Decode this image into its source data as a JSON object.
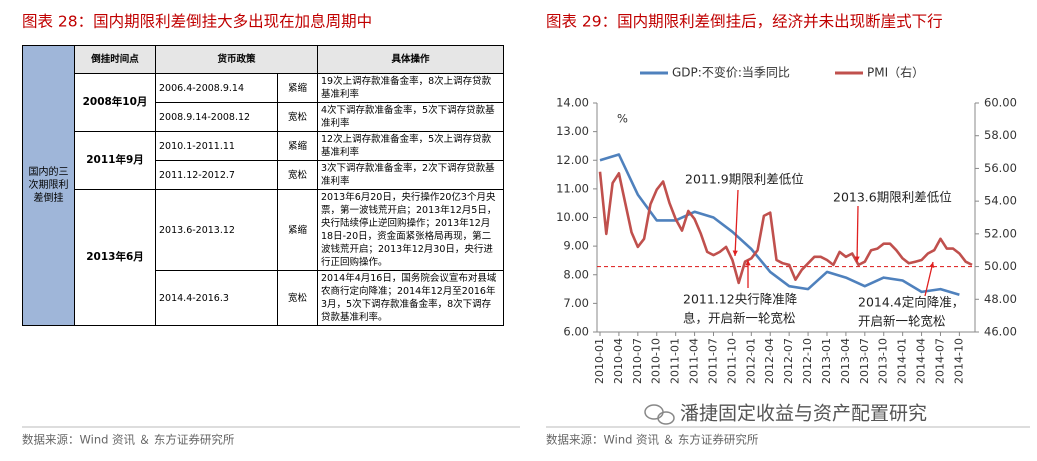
{
  "left_panel": {
    "title": "图表 28：国内期限利差倒挂大多出现在加息周期中",
    "table": {
      "side_label": "国内的三次期限利差倒挂",
      "header": [
        "倒挂时间点",
        "货币政策",
        "具体操作"
      ],
      "groups": [
        {
          "time": "2008年10月",
          "rows": [
            [
              "2006.4-2008.9.14",
              "紧缩",
              "19次上调存款准备金率，8次上调存贷款基准利率"
            ],
            [
              "2008.9.14-2008.12",
              "宽松",
              "4次下调存款准备金率，5次下调存贷款基准利率"
            ]
          ]
        },
        {
          "time": "2011年9月",
          "rows": [
            [
              "2010.1-2011.11",
              "紧缩",
              "12次上调存款准备金率，5次上调存贷款基准利率"
            ],
            [
              "2011.12-2012.7",
              "宽松",
              "3次下调存款准备金率，2次下调存贷款基准利率"
            ]
          ]
        },
        {
          "time": "2013年6月",
          "rows": [
            [
              "2013.6-2013.12",
              "紧缩",
              "2013年6月20日，央行操作20亿3个月央票，第一波钱荒开启；2013年12月5日，央行陆续停止逆回购操作；2013年12月18日-20日，资金面紧张格局再现，第二波钱荒开启；2013年12月30日，央行进行正回购操作。"
            ],
            [
              "2014.4-2016.3",
              "宽松",
              "2014年4月16日，国务院会议宣布对县域农商行定向降准；2014年12月至2016年3月，5次下调存款准备金率，8次下调存贷款基准利率。"
            ]
          ]
        }
      ]
    },
    "source": "数据来源：Wind 资讯 ＆ 东方证券研究所"
  },
  "right_panel": {
    "title": "图表 29：国内期限利差倒挂后，经济并未出现断崖式下行",
    "source": "数据来源：Wind 资讯 ＆ 东方证券研究所",
    "watermark": "潘捷固定收益与资产配置研究"
  },
  "chart_data": {
    "type": "line",
    "y_unit_label": "%",
    "categories": [
      "2010-01",
      null,
      null,
      "2010-04",
      null,
      null,
      "2010-07",
      null,
      null,
      "2010-10",
      null,
      null,
      "2011-01",
      null,
      null,
      "2011-04",
      null,
      null,
      "2011-07",
      null,
      null,
      "2011-10",
      null,
      null,
      "2012-01",
      null,
      null,
      "2012-04",
      null,
      null,
      "2012-07",
      null,
      null,
      "2012-10",
      null,
      null,
      "2013-01",
      null,
      null,
      "2013-04",
      null,
      null,
      "2013-07",
      null,
      null,
      "2013-10",
      null,
      null,
      "2014-01",
      null,
      null,
      "2014-04",
      null,
      null,
      "2014-07",
      null,
      null,
      "2014-10",
      null,
      null
    ],
    "series": [
      {
        "name": "GDP:不变价:当季同比",
        "color": "#4f81bd",
        "axis": "y",
        "x": [
          "2010-01",
          "2010-04",
          "2010-07",
          "2010-10",
          "2011-01",
          "2011-04",
          "2011-07",
          "2011-10",
          "2012-01",
          "2012-04",
          "2012-07",
          "2012-10",
          "2013-01",
          "2013-04",
          "2013-07",
          "2013-10",
          "2014-01",
          "2014-04",
          "2014-07",
          "2014-10"
        ],
        "values": [
          12.0,
          12.2,
          10.8,
          9.9,
          9.9,
          10.2,
          10.0,
          9.5,
          8.9,
          8.1,
          7.6,
          7.5,
          8.1,
          7.9,
          7.6,
          7.9,
          7.8,
          7.4,
          7.5,
          7.3
        ]
      },
      {
        "name": "PMI（右）",
        "color": "#c0504d",
        "axis": "y2",
        "values": [
          55.8,
          52.0,
          55.1,
          55.7,
          53.9,
          52.1,
          51.2,
          51.7,
          53.8,
          54.7,
          55.2,
          53.9,
          52.9,
          52.2,
          53.4,
          52.9,
          52.0,
          50.9,
          50.7,
          50.9,
          51.2,
          50.4,
          49.0,
          50.3,
          50.5,
          51.0,
          53.1,
          53.3,
          50.4,
          50.2,
          50.1,
          49.2,
          49.8,
          50.2,
          50.6,
          50.6,
          50.4,
          50.1,
          50.9,
          50.6,
          50.8,
          50.1,
          50.3,
          51.0,
          51.1,
          51.4,
          51.4,
          51.0,
          50.5,
          50.2,
          50.3,
          50.4,
          50.8,
          51.0,
          51.7,
          51.1,
          51.1,
          50.8,
          50.3,
          50.1
        ]
      }
    ],
    "reference_line": {
      "value": 50,
      "axis": "y2",
      "color": "#e03030"
    },
    "ylim": [
      6,
      14
    ],
    "yticks": [
      {
        "value": 6,
        "label": "6.00"
      },
      {
        "value": 7,
        "label": "7.00"
      },
      {
        "value": 8,
        "label": "8.00"
      },
      {
        "value": 9,
        "label": "9.00"
      },
      {
        "value": 10,
        "label": "10.00"
      },
      {
        "value": 11,
        "label": "11.00"
      },
      {
        "value": 12,
        "label": "12.00"
      },
      {
        "value": 13,
        "label": "13.00"
      },
      {
        "value": 14,
        "label": "14.00"
      }
    ],
    "y2lim": [
      46,
      60
    ],
    "y2ticks": [
      {
        "value": 46,
        "label": "46.00"
      },
      {
        "value": 48,
        "label": "48.00"
      },
      {
        "value": 50,
        "label": "50.00"
      },
      {
        "value": 52,
        "label": "52.00"
      },
      {
        "value": 54,
        "label": "54.00"
      },
      {
        "value": 56,
        "label": "56.00"
      },
      {
        "value": 58,
        "label": "58.00"
      },
      {
        "value": 60,
        "label": "60.00"
      }
    ],
    "legend": "top",
    "annotations": [
      {
        "lines": [
          "2011.9期限利差低位"
        ]
      },
      {
        "lines": [
          "2013.6期限利差低位"
        ]
      },
      {
        "lines": [
          "2011.12央行降准降",
          "息，开启新一轮宽松"
        ]
      },
      {
        "lines": [
          "2014.4定向降准，",
          "开启新一轮宽松"
        ]
      }
    ]
  }
}
